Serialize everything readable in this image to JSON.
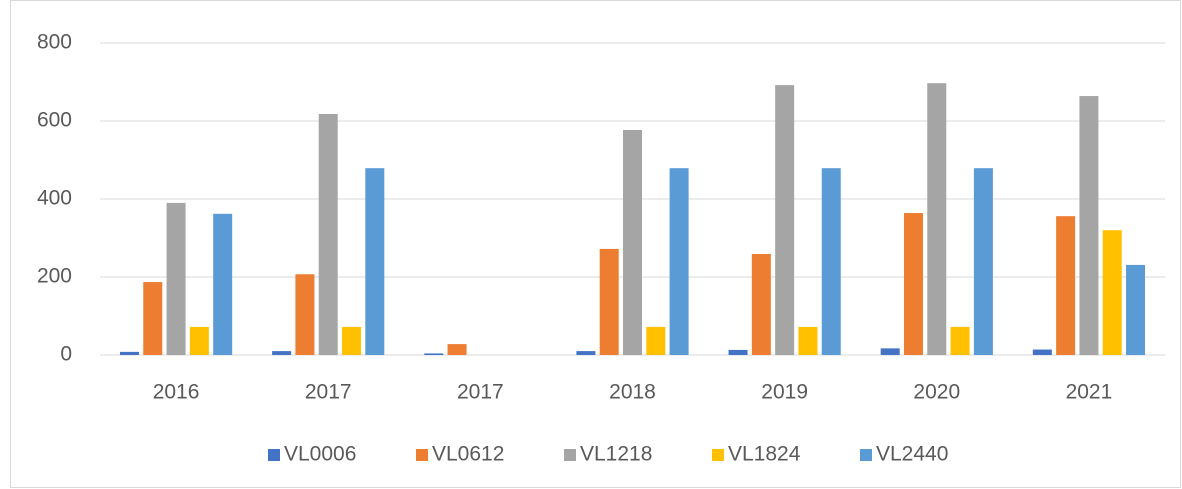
{
  "chart_data": {
    "type": "bar",
    "categories": [
      "2016",
      "2017",
      "2017",
      "2018",
      "2019",
      "2020",
      "2021"
    ],
    "series": [
      {
        "name": "VL0006",
        "color": "#4472c4",
        "values": [
          8,
          10,
          4,
          10,
          13,
          17,
          14
        ]
      },
      {
        "name": "VL0612",
        "color": "#ed7d31",
        "values": [
          187,
          207,
          28,
          272,
          259,
          364,
          356
        ]
      },
      {
        "name": "VL1218",
        "color": "#a5a5a5",
        "values": [
          390,
          618,
          0,
          577,
          692,
          697,
          664
        ]
      },
      {
        "name": "VL1824",
        "color": "#ffc000",
        "values": [
          72,
          72,
          0,
          72,
          72,
          72,
          320
        ]
      },
      {
        "name": "VL2440",
        "color": "#5b9bd5",
        "values": [
          362,
          479,
          0,
          479,
          479,
          479,
          231
        ]
      }
    ],
    "ylim": [
      0,
      800
    ],
    "yticks": [
      0,
      200,
      400,
      600,
      800
    ],
    "grid": true,
    "legend": "bottom"
  }
}
